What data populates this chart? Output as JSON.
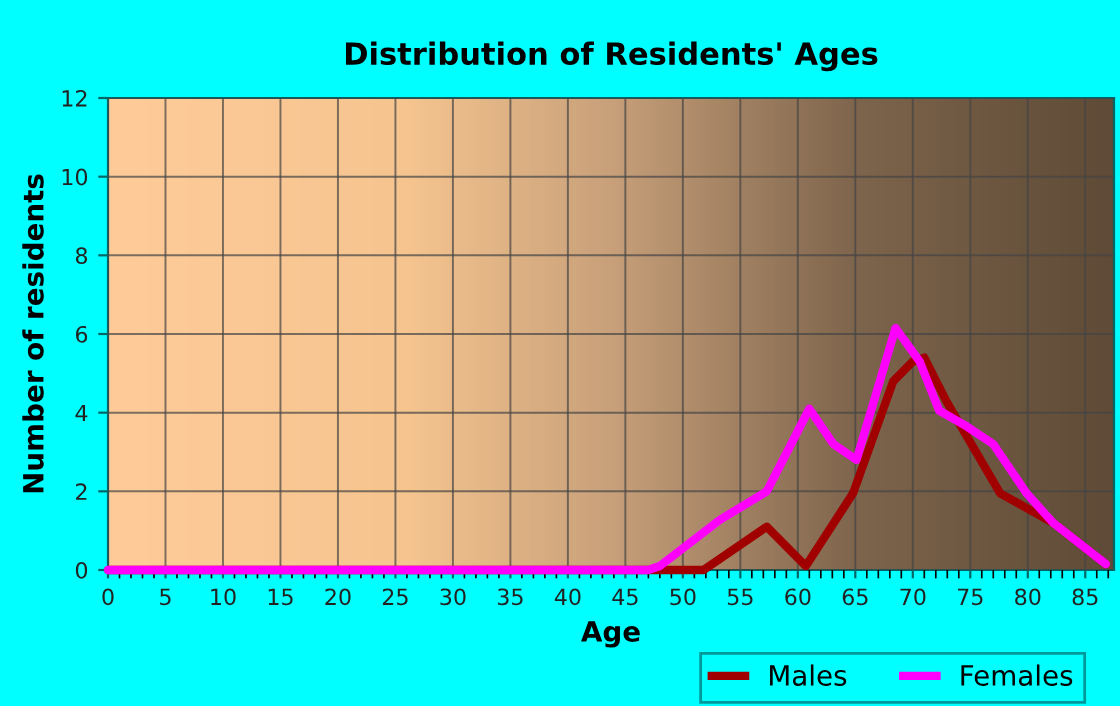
{
  "chart_data": {
    "type": "line",
    "title": "Distribution of Residents' Ages",
    "xlabel": "Age",
    "ylabel": "Number of residents",
    "xlim": [
      0,
      87.5
    ],
    "xticks": [
      0,
      5,
      10,
      15,
      20,
      25,
      30,
      35,
      40,
      45,
      50,
      55,
      60,
      65,
      70,
      75,
      80,
      85
    ],
    "ylim": [
      0,
      12
    ],
    "yticks": [
      0,
      2,
      4,
      6,
      8,
      10,
      12
    ],
    "grid": true,
    "legend": "bottom",
    "marker": "none",
    "line_style": "solid",
    "series": [
      {
        "name": "Males",
        "color": "#a00000",
        "x": [
          0,
          51.8,
          57.3,
          60.7,
          64.8,
          68.3,
          70.0,
          71.0,
          72.9,
          77.6,
          82.2,
          86.8
        ],
        "values": [
          0,
          0,
          1.1,
          0.1,
          1.95,
          4.8,
          5.3,
          5.4,
          4.3,
          1.95,
          1.2,
          0.15
        ]
      },
      {
        "name": "Females",
        "color": "#ff00ff",
        "x": [
          0,
          47,
          48,
          53.2,
          57.3,
          61.0,
          63.1,
          65.1,
          68.5,
          70.6,
          72.3,
          74.7,
          77.0,
          79.9,
          82.2,
          86.8
        ],
        "values": [
          0,
          0,
          0.1,
          1.27,
          2.0,
          4.1,
          3.2,
          2.8,
          6.15,
          5.3,
          4.05,
          3.65,
          3.2,
          1.95,
          1.2,
          0.15
        ]
      }
    ]
  }
}
